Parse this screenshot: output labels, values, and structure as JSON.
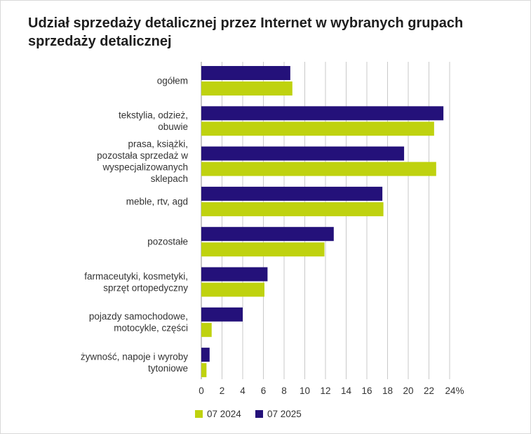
{
  "chart_data": {
    "type": "bar",
    "orientation": "horizontal",
    "title": "Udział sprzedaży detalicznej przez Internet w wybranych grupach sprzedaży detalicznej",
    "categories": [
      [
        "ogółem"
      ],
      [
        "tekstylia, odzież,",
        "obuwie"
      ],
      [
        "prasa, książki,",
        "pozostała sprzedaż w",
        "wyspecjalizowanych",
        "sklepach"
      ],
      [
        "meble, rtv, agd"
      ],
      [
        "pozostałe"
      ],
      [
        "farmaceutyki, kosmetyki,",
        "sprzęt ortopedyczny"
      ],
      [
        "pojazdy samochodowe,",
        "motocykle, części"
      ],
      [
        "żywność, napoje i wyroby",
        "tytoniowe"
      ]
    ],
    "series": [
      {
        "name": "07 2025",
        "color": "#24117a",
        "values": [
          8.6,
          23.4,
          19.6,
          17.5,
          12.8,
          6.4,
          4.0,
          0.8
        ]
      },
      {
        "name": "07 2024",
        "color": "#bfd20f",
        "values": [
          8.8,
          22.5,
          22.7,
          17.6,
          11.9,
          6.1,
          1.0,
          0.5
        ]
      }
    ],
    "xlim": [
      0,
      24
    ],
    "xticks": [
      0,
      2,
      4,
      6,
      8,
      10,
      12,
      14,
      16,
      18,
      20,
      22,
      24
    ],
    "xtick_labels": [
      "0",
      "2",
      "4",
      "6",
      "8",
      "10",
      "12",
      "14",
      "16",
      "18",
      "20",
      "22",
      "24%"
    ],
    "grid": "vertical",
    "legend": {
      "position": "bottom-left",
      "order": [
        "07 2024",
        "07 2025"
      ]
    }
  }
}
